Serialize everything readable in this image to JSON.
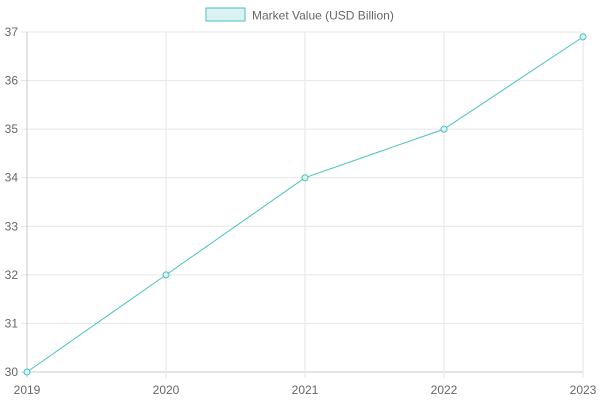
{
  "chart_data": {
    "type": "line",
    "x": [
      "2019",
      "2020",
      "2021",
      "2022",
      "2023"
    ],
    "series": [
      {
        "name": "Market Value (USD Billion)",
        "values": [
          30.0,
          32.0,
          34.0,
          35.0,
          36.9
        ],
        "color": "#4bc0c0",
        "fill": "#dbf2f2"
      }
    ],
    "y_ticks": [
      30,
      31,
      32,
      33,
      34,
      35,
      36,
      37
    ],
    "ylim": [
      30,
      37
    ],
    "grid": true,
    "legend": "top-center"
  }
}
